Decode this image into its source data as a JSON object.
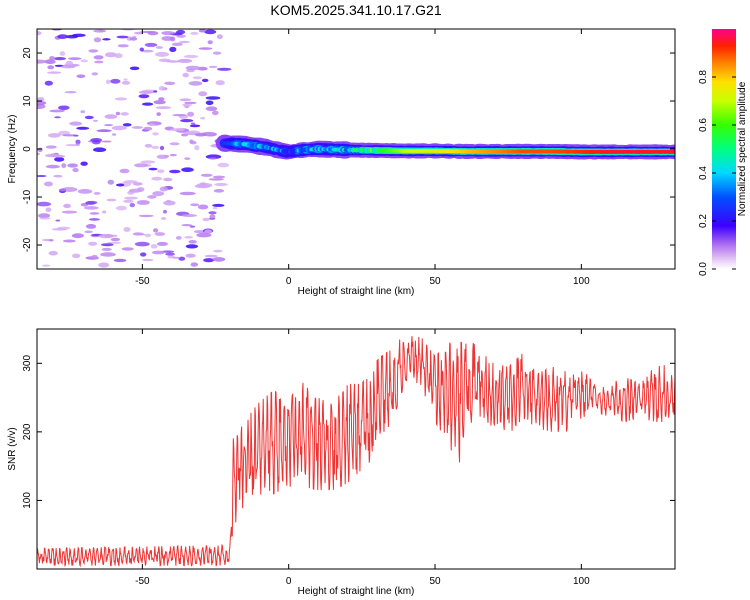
{
  "chart_data": [
    {
      "type": "heatmap",
      "title": "KOM5.2025.341.10.17.G21",
      "xlabel": "Height of straight line (km)",
      "ylabel": "Frequency (Hz)",
      "xlim": [
        -86,
        132
      ],
      "ylim": [
        -25,
        25
      ],
      "xticks": [
        -50,
        0,
        50,
        100
      ],
      "yticks": [
        -20,
        -10,
        0,
        10,
        20
      ],
      "signal_onset_km": -22,
      "noise_region_km": [
        -86,
        -22
      ],
      "ridge": {
        "x": [
          -22,
          -15,
          -8,
          -3,
          0,
          5,
          10,
          20,
          30,
          40,
          50,
          60,
          70,
          80,
          90,
          100,
          110,
          120,
          132
        ],
        "y": [
          1.2,
          1.0,
          0.4,
          -0.3,
          -0.6,
          -0.2,
          0.0,
          -0.2,
          -0.3,
          -0.4,
          -0.4,
          -0.5,
          -0.5,
          -0.5,
          -0.5,
          -0.6,
          -0.6,
          -0.6,
          -0.6
        ],
        "amplitude": [
          0.25,
          0.35,
          0.35,
          0.3,
          0.3,
          0.35,
          0.35,
          0.4,
          0.55,
          0.7,
          0.75,
          0.8,
          0.85,
          0.9,
          0.9,
          0.92,
          0.95,
          0.95,
          0.95
        ]
      },
      "colorbar": {
        "label": "Normalized spectral amplitude",
        "range": [
          0,
          1
        ],
        "ticks": [
          "0.0",
          "0.2",
          "0.4",
          "0.6",
          "0.8"
        ]
      }
    },
    {
      "type": "line",
      "xlabel": "Height of straight line (km)",
      "ylabel": "SNR (v/v)",
      "xlim": [
        -86,
        132
      ],
      "ylim": [
        0,
        350
      ],
      "xticks": [
        -50,
        0,
        50,
        100
      ],
      "yticks": [
        100,
        200,
        300
      ],
      "color": "#ee3333",
      "envelope_x": [
        -86,
        -20,
        -19,
        -15,
        -10,
        -5,
        0,
        5,
        10,
        15,
        20,
        25,
        30,
        35,
        40,
        45,
        50,
        55,
        58,
        60,
        65,
        70,
        75,
        80,
        85,
        90,
        95,
        100,
        105,
        110,
        115,
        120,
        125,
        132
      ],
      "envelope_lo": [
        5,
        5,
        60,
        95,
        100,
        110,
        120,
        120,
        115,
        115,
        125,
        145,
        165,
        210,
        275,
        270,
        215,
        180,
        140,
        200,
        205,
        210,
        195,
        220,
        205,
        200,
        200,
        220,
        230,
        220,
        215,
        220,
        215,
        210
      ],
      "envelope_hi": [
        30,
        35,
        190,
        215,
        245,
        260,
        245,
        280,
        250,
        240,
        270,
        270,
        305,
        320,
        345,
        340,
        310,
        330,
        320,
        345,
        320,
        300,
        295,
        315,
        285,
        295,
        290,
        295,
        265,
        275,
        280,
        270,
        295,
        300
      ]
    }
  ]
}
